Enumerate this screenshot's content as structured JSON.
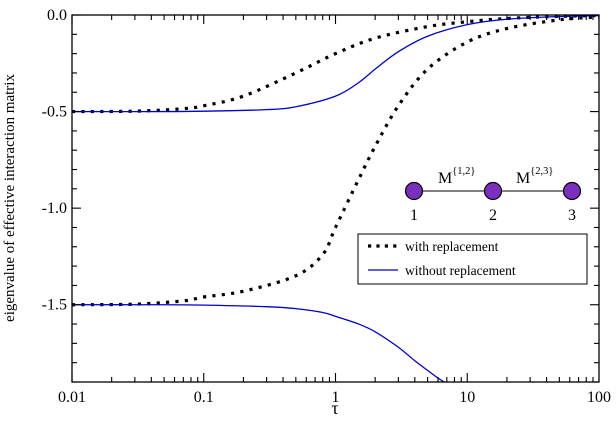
{
  "chart_data": {
    "type": "line",
    "xscale": "log",
    "xlim": [
      0.01,
      100
    ],
    "ylim": [
      -1.9,
      0.0
    ],
    "xlabel": "τ",
    "ylabel": "eigenvalue of effective interaction matrix",
    "xticks": [
      {
        "value": 0.01,
        "label": "0.01"
      },
      {
        "value": 0.1,
        "label": "0.1"
      },
      {
        "value": 1,
        "label": "1"
      },
      {
        "value": 10,
        "label": "10"
      },
      {
        "value": 100,
        "label": "100"
      }
    ],
    "yticks": [
      {
        "value": 0.0,
        "label": "0.0"
      },
      {
        "value": -0.5,
        "label": "-0.5"
      },
      {
        "value": -1.0,
        "label": "-1.0"
      },
      {
        "value": -1.5,
        "label": "-1.5"
      }
    ],
    "series": [
      {
        "name": "with replacement",
        "style": "dotted",
        "color": "#000000",
        "curves": [
          {
            "x": [
              0.01,
              0.03,
              0.07,
              0.1,
              0.2,
              0.5,
              1,
              2,
              5,
              10,
              20,
              50,
              100
            ],
            "y": [
              -0.5,
              -0.498,
              -0.485,
              -0.47,
              -0.42,
              -0.3,
              -0.2,
              -0.12,
              -0.06,
              -0.035,
              -0.018,
              -0.007,
              -0.003
            ]
          },
          {
            "x": [
              0.01,
              0.03,
              0.07,
              0.1,
              0.2,
              0.5,
              0.8,
              1,
              1.5,
              2,
              3,
              5,
              10,
              20,
              50,
              100
            ],
            "y": [
              -1.5,
              -1.497,
              -1.48,
              -1.46,
              -1.43,
              -1.35,
              -1.24,
              -1.1,
              -0.85,
              -0.68,
              -0.47,
              -0.28,
              -0.14,
              -0.07,
              -0.025,
              -0.01
            ]
          }
        ]
      },
      {
        "name": "without replacement",
        "style": "solid",
        "color": "#0000cc",
        "curves": [
          {
            "x": [
              0.01,
              0.05,
              0.1,
              0.3,
              0.5,
              1,
              1.5,
              2,
              3,
              5,
              10,
              20,
              50,
              100
            ],
            "y": [
              -0.5,
              -0.5,
              -0.498,
              -0.49,
              -0.475,
              -0.42,
              -0.35,
              -0.28,
              -0.19,
              -0.11,
              -0.05,
              -0.022,
              -0.008,
              -0.003
            ]
          },
          {
            "x": [
              0.01,
              0.05,
              0.1,
              0.3,
              0.5,
              0.8,
              1,
              1.5,
              2,
              3,
              4,
              5,
              6,
              6.7
            ],
            "y": [
              -1.5,
              -1.5,
              -1.502,
              -1.51,
              -1.52,
              -1.54,
              -1.56,
              -1.6,
              -1.64,
              -1.72,
              -1.79,
              -1.84,
              -1.88,
              -1.9
            ]
          }
        ]
      }
    ],
    "legend": {
      "placement": "center-right",
      "entries": [
        {
          "label": "with replacement",
          "style": "dotted",
          "color": "#000000"
        },
        {
          "label": "without replacement",
          "style": "solid",
          "color": "#0000cc"
        }
      ]
    },
    "inset": {
      "nodes": [
        "1",
        "2",
        "3"
      ],
      "node_color": "#7b2fbf",
      "edges": [
        {
          "base": "M",
          "sup": "{1,2}"
        },
        {
          "base": "M",
          "sup": "{2,3}"
        }
      ]
    },
    "grid": false
  }
}
